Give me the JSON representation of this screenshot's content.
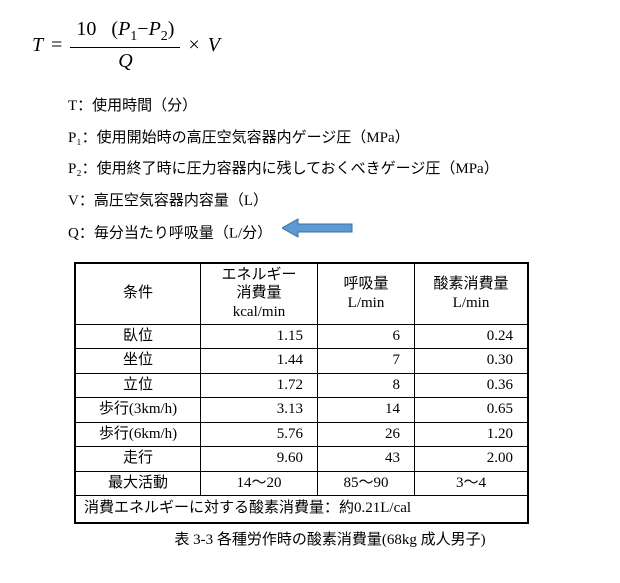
{
  "formula": {
    "lhs": "T",
    "eq": "=",
    "num_a": "10",
    "num_b_open": "(",
    "num_b_p1": "P",
    "num_b_p1s": "1",
    "num_b_minus": "−",
    "num_b_p2": "P",
    "num_b_p2s": "2",
    "num_b_close": ")",
    "den": "Q",
    "mult": "×",
    "rhs": "V"
  },
  "defs": {
    "t": "T：使用時間（分）",
    "p1": "P₁：使用開始時の高圧空気容器内ゲージ圧（MPa）",
    "p2": "P₂：使用終了時に圧力容器内に残しておくべきゲージ圧（MPa）",
    "v": "V：高圧空気容器内容量（L）",
    "q": "Q：毎分当たり呼吸量（L/分）"
  },
  "table": {
    "headers": {
      "cond": "条件",
      "energy_l1": "エネルギー",
      "energy_l2": "消費量",
      "energy_l3": "kcal/min",
      "breath_l1": "呼吸量",
      "breath_l2": "L/min",
      "oxy_l1": "酸素消費量",
      "oxy_l2": "L/min"
    },
    "rows": [
      {
        "name": "臥位",
        "energy": "1.15",
        "breath": "6",
        "oxy": "0.24"
      },
      {
        "name": "坐位",
        "energy": "1.44",
        "breath": "7",
        "oxy": "0.30"
      },
      {
        "name": "立位",
        "energy": "1.72",
        "breath": "8",
        "oxy": "0.36"
      },
      {
        "name": "歩行(3km/h)",
        "energy": "3.13",
        "breath": "14",
        "oxy": "0.65"
      },
      {
        "name": "歩行(6km/h)",
        "energy": "5.76",
        "breath": "26",
        "oxy": "1.20"
      },
      {
        "name": "走行",
        "energy": "9.60",
        "breath": "43",
        "oxy": "2.00"
      },
      {
        "name": "最大活動",
        "energy": "14～20",
        "breath": "85～90",
        "oxy": "3～4"
      }
    ],
    "footer": "消費エネルギーに対する酸素消費量：約0.21L/cal"
  },
  "caption": "表 3-3 各種労作時の酸素消費量(68kg 成人男子)",
  "arrow_color": "#5b9bd5"
}
